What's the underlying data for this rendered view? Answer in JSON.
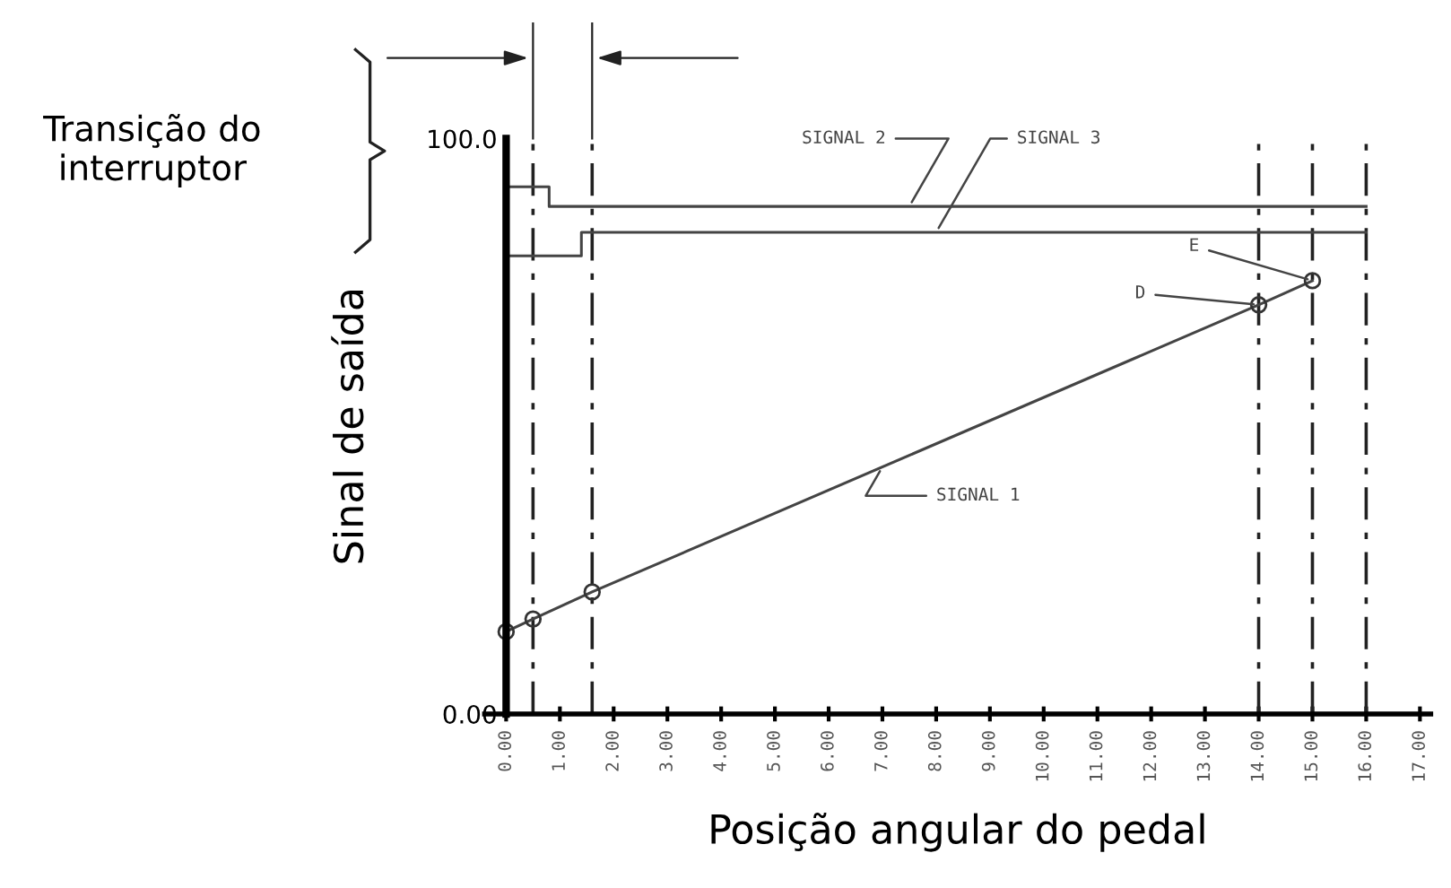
{
  "chart_data": {
    "type": "line",
    "xlabel": "Posição angular do pedal",
    "ylabel": "Sinal de saída",
    "xlim": [
      -0.4,
      17.2
    ],
    "ylim": [
      0,
      100
    ],
    "xticks": [
      {
        "value": 0,
        "label": "0.00"
      },
      {
        "value": 1,
        "label": "1.00"
      },
      {
        "value": 2,
        "label": "2.00"
      },
      {
        "value": 3,
        "label": "3.00"
      },
      {
        "value": 4,
        "label": "4.00"
      },
      {
        "value": 5,
        "label": "5.00"
      },
      {
        "value": 6,
        "label": "6.00"
      },
      {
        "value": 7,
        "label": "7.00"
      },
      {
        "value": 8,
        "label": "8.00"
      },
      {
        "value": 9,
        "label": "9.00"
      },
      {
        "value": 10,
        "label": "10.00"
      },
      {
        "value": 11,
        "label": "11.00"
      },
      {
        "value": 12,
        "label": "12.00"
      },
      {
        "value": 13,
        "label": "13.00"
      },
      {
        "value": 14,
        "label": "14.00"
      },
      {
        "value": 15,
        "label": "15.00"
      },
      {
        "value": 16,
        "label": "16.00"
      },
      {
        "value": 17,
        "label": "17.00"
      }
    ],
    "yticks": [
      {
        "value": 0,
        "label": "0.00"
      },
      {
        "value": 100,
        "label": "100.0"
      }
    ],
    "series": [
      {
        "name": "SIGNAL 1",
        "color": "#444444",
        "x": [
          0,
          0.5,
          1.6,
          14,
          15
        ],
        "values": [
          14.3,
          16.5,
          21.2,
          71.1,
          75.3
        ],
        "marker": "circle"
      },
      {
        "name": "SIGNAL 2",
        "color": "#444444",
        "x": [
          0,
          0.8,
          0.8,
          16
        ],
        "values": [
          91.6,
          91.6,
          88.2,
          88.2
        ],
        "marker": "none"
      },
      {
        "name": "SIGNAL 3",
        "color": "#444444",
        "x": [
          0,
          1.4,
          1.4,
          16
        ],
        "values": [
          79.6,
          79.6,
          83.7,
          83.7
        ],
        "marker": "none"
      }
    ],
    "ref_lines": [
      {
        "axis": "x",
        "value": 0.5,
        "line_style": "dashed",
        "color": "#222222"
      },
      {
        "axis": "x",
        "value": 1.6,
        "line_style": "dashed",
        "color": "#222222"
      },
      {
        "axis": "x",
        "value": 14,
        "line_style": "dashed",
        "color": "#222222"
      },
      {
        "axis": "x",
        "value": 15,
        "line_style": "dashed",
        "color": "#222222"
      },
      {
        "axis": "x",
        "value": 16,
        "line_style": "dashed",
        "color": "#222222"
      }
    ],
    "annotations": [
      "Transição do interruptor",
      {
        "text": "D",
        "x": 14,
        "y": 71.1
      },
      {
        "text": "E",
        "x": 15,
        "y": 75.3
      }
    ],
    "grid": false
  }
}
